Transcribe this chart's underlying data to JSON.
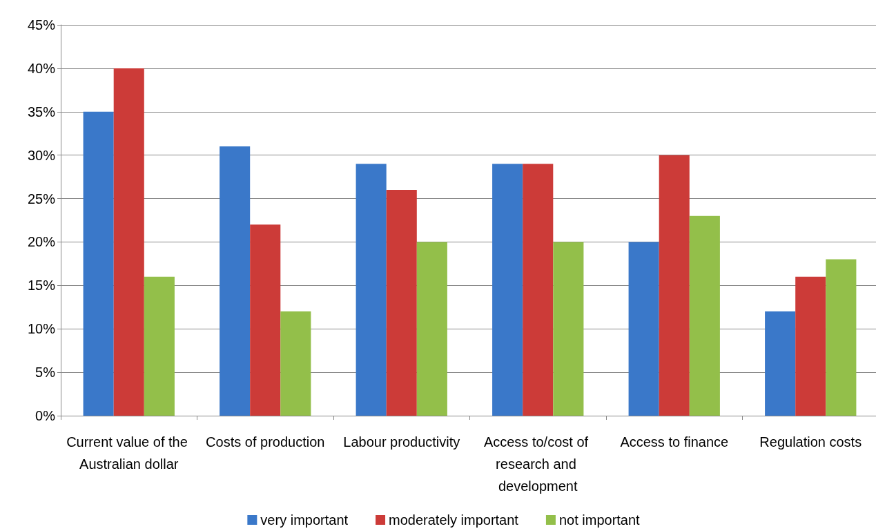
{
  "chart_data": {
    "type": "bar",
    "categories": [
      "Current value of the Australian dollar",
      "Costs of production",
      "Labour productivity",
      "Access to/cost of research and development",
      "Access to finance",
      "Regulation costs"
    ],
    "series": [
      {
        "name": "very important",
        "color": "#3a78c9",
        "values": [
          35,
          31,
          29,
          29,
          20,
          12
        ]
      },
      {
        "name": "moderately important",
        "color": "#cc3b38",
        "values": [
          40,
          22,
          26,
          29,
          30,
          16
        ]
      },
      {
        "name": "not important",
        "color": "#93bf4a",
        "values": [
          16,
          12,
          20,
          20,
          23,
          18
        ]
      }
    ],
    "ylim": [
      0,
      45
    ],
    "yticks": [
      {
        "value": 0,
        "label": "0%"
      },
      {
        "value": 5,
        "label": "5%"
      },
      {
        "value": 10,
        "label": "10%"
      },
      {
        "value": 15,
        "label": "15%"
      },
      {
        "value": 20,
        "label": "20%"
      },
      {
        "value": 25,
        "label": "25%"
      },
      {
        "value": 30,
        "label": "30%"
      },
      {
        "value": 35,
        "label": "35%"
      },
      {
        "value": 40,
        "label": "40%"
      },
      {
        "value": 45,
        "label": "45%"
      }
    ],
    "grid": "y",
    "legend": "bottom"
  }
}
